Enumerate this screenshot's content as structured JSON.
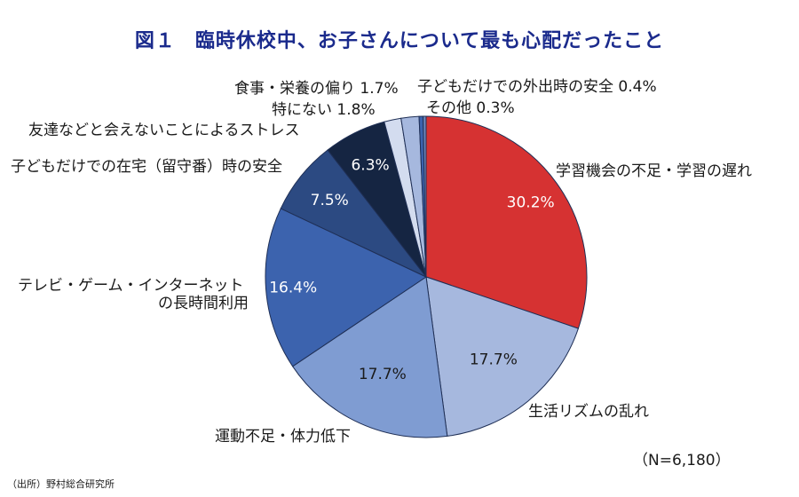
{
  "chart_data": {
    "type": "pie",
    "figure_label": "図１",
    "title": "臨時休校中、お子さんについて最も心配だったこと",
    "slices": [
      {
        "label": "学習機会の不足・学習の遅れ",
        "value": 30.2,
        "value_label": "30.2%",
        "color": "#d63232"
      },
      {
        "label": "生活リズムの乱れ",
        "value": 17.7,
        "value_label": "17.7%",
        "color": "#a6b8de"
      },
      {
        "label": "運動不足・体力低下",
        "value": 17.7,
        "value_label": "17.7%",
        "color": "#7f9cd2"
      },
      {
        "label": "テレビ・ゲーム・インターネットの長時間利用",
        "label_lines": [
          "テレビ・ゲーム・インターネット",
          "の長時間利用"
        ],
        "value": 16.4,
        "value_label": "16.4%",
        "color": "#3c63ae"
      },
      {
        "label": "子どもだけでの在宅（留守番）時の安全",
        "value": 7.5,
        "value_label": "7.5%",
        "color": "#2c4a82"
      },
      {
        "label": "友達などと会えないことによるストレス",
        "value": 6.3,
        "value_label": "6.3%",
        "color": "#152542"
      },
      {
        "label": "食事・栄養の偏り",
        "value": 1.7,
        "value_label": "1.7%",
        "color": "#d3dcef"
      },
      {
        "label": "特にない",
        "value": 1.8,
        "value_label": "1.8%",
        "color": "#a6b8de"
      },
      {
        "label": "子どもだけでの外出時の安全",
        "value": 0.4,
        "value_label": "0.4%",
        "color": "#3c63ae"
      },
      {
        "label": "その他",
        "value": 0.3,
        "value_label": "0.3%",
        "color": "#6d87bd"
      }
    ],
    "note": "（N=6,180）",
    "source": "（出所）野村総合研究所"
  }
}
